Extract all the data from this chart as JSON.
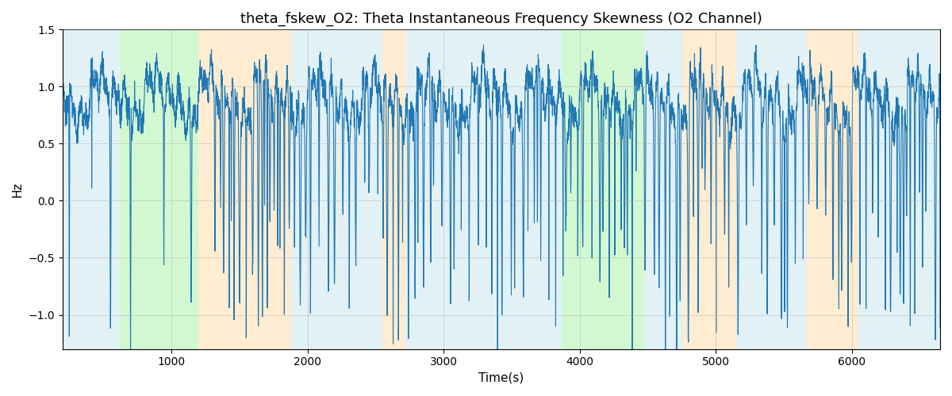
{
  "title": "theta_fskew_O2: Theta Instantaneous Frequency Skewness (O2 Channel)",
  "xlabel": "Time(s)",
  "ylabel": "Hz",
  "ylim": [
    -1.3,
    1.5
  ],
  "xlim": [
    200,
    6650
  ],
  "bg_regions": [
    {
      "start": 200,
      "end": 620,
      "color": "#add8e6",
      "alpha": 0.35
    },
    {
      "start": 620,
      "end": 1200,
      "color": "#90ee90",
      "alpha": 0.4
    },
    {
      "start": 1200,
      "end": 1880,
      "color": "#ffd59b",
      "alpha": 0.45
    },
    {
      "start": 1880,
      "end": 2550,
      "color": "#add8e6",
      "alpha": 0.35
    },
    {
      "start": 2550,
      "end": 2720,
      "color": "#ffd59b",
      "alpha": 0.45
    },
    {
      "start": 2720,
      "end": 3780,
      "color": "#add8e6",
      "alpha": 0.35
    },
    {
      "start": 3780,
      "end": 3870,
      "color": "#add8e6",
      "alpha": 0.35
    },
    {
      "start": 3870,
      "end": 4480,
      "color": "#90ee90",
      "alpha": 0.4
    },
    {
      "start": 4480,
      "end": 4760,
      "color": "#add8e6",
      "alpha": 0.35
    },
    {
      "start": 4760,
      "end": 5150,
      "color": "#ffd59b",
      "alpha": 0.45
    },
    {
      "start": 5150,
      "end": 5670,
      "color": "#add8e6",
      "alpha": 0.35
    },
    {
      "start": 5670,
      "end": 6050,
      "color": "#ffd59b",
      "alpha": 0.45
    },
    {
      "start": 6050,
      "end": 6650,
      "color": "#add8e6",
      "alpha": 0.35
    }
  ],
  "line_color": "#1f77b4",
  "line_width": 0.8,
  "grid_color": "#aaaaaa",
  "grid_alpha": 0.6,
  "grid_linewidth": 0.5,
  "yticks": [
    -1.0,
    -0.5,
    0.0,
    0.5,
    1.0,
    1.5
  ],
  "xticks": [
    1000,
    2000,
    3000,
    4000,
    5000,
    6000
  ],
  "seed": 12345,
  "n_points": 5000,
  "title_fontsize": 13,
  "label_fontsize": 11
}
